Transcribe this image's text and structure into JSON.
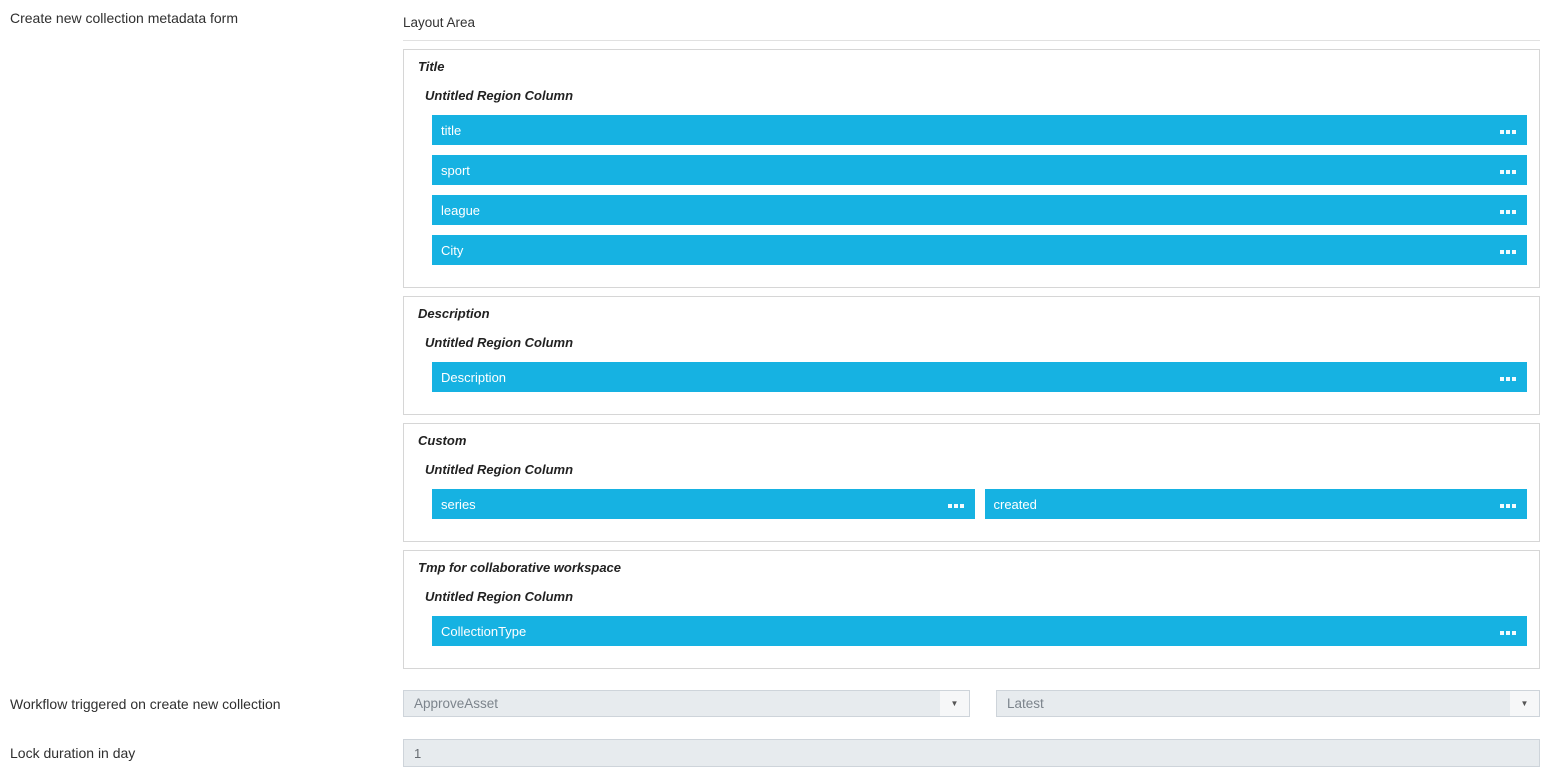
{
  "page": {
    "form_label": "Create new collection metadata form",
    "layout_area_label": "Layout Area"
  },
  "layout": {
    "regions": [
      {
        "name": "Title",
        "column_label": "Untitled Region Column",
        "fields": [
          "title",
          "sport",
          "league",
          "City"
        ]
      },
      {
        "name": "Description",
        "column_label": "Untitled Region Column",
        "fields": [
          "Description"
        ]
      },
      {
        "name": "Custom",
        "column_label": "Untitled Region Column",
        "fields": [
          "series",
          "created"
        ]
      },
      {
        "name": "Tmp for collaborative workspace",
        "column_label": "Untitled Region Column",
        "fields": [
          "CollectionType"
        ]
      }
    ]
  },
  "workflow": {
    "label": "Workflow triggered on create new collection",
    "selected_workflow": "ApproveAsset",
    "selected_version": "Latest"
  },
  "lock": {
    "label": "Lock duration in day",
    "value": "1"
  },
  "icons": {
    "dropdown_arrow": "▼",
    "drag_handle": "ellipsis-drag-handle"
  },
  "colors": {
    "field_bar": "#16b2e2",
    "field_bar_text": "#ffffff",
    "section_border": "#d6d6d6",
    "input_bg": "#e7ebee",
    "input_border": "#ced4da",
    "input_text": "#7c848c"
  }
}
